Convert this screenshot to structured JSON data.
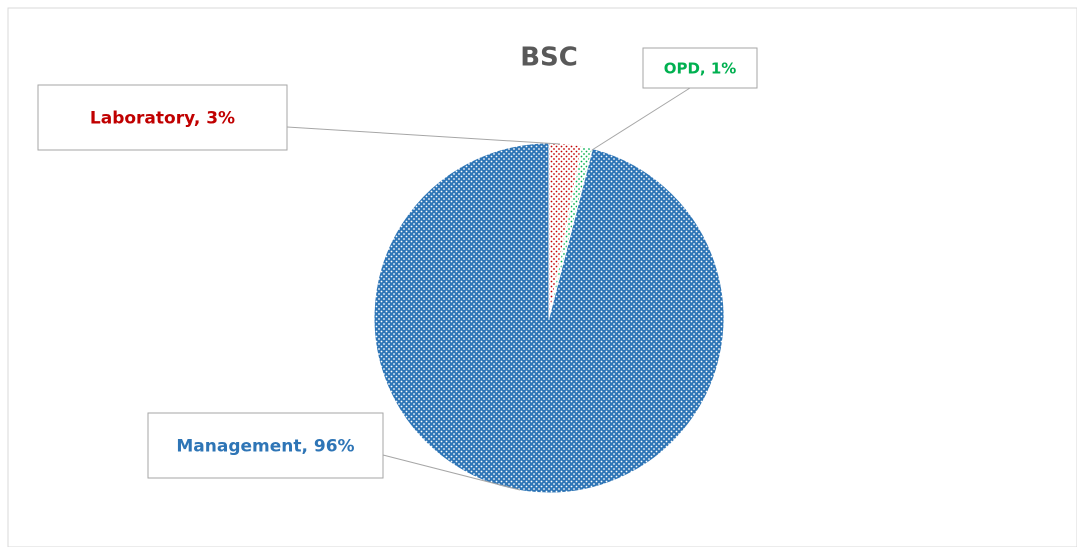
{
  "chart_data": {
    "type": "pie",
    "title": "BSC",
    "categories": [
      "Laboratory",
      "OPD",
      "Management"
    ],
    "values": [
      3,
      1,
      96
    ],
    "value_labels": [
      "Laboratory, 3%",
      "OPD, 1%",
      "Management, 96%"
    ],
    "colors": [
      "#c00000",
      "#00b050",
      "#2e75b6"
    ]
  }
}
